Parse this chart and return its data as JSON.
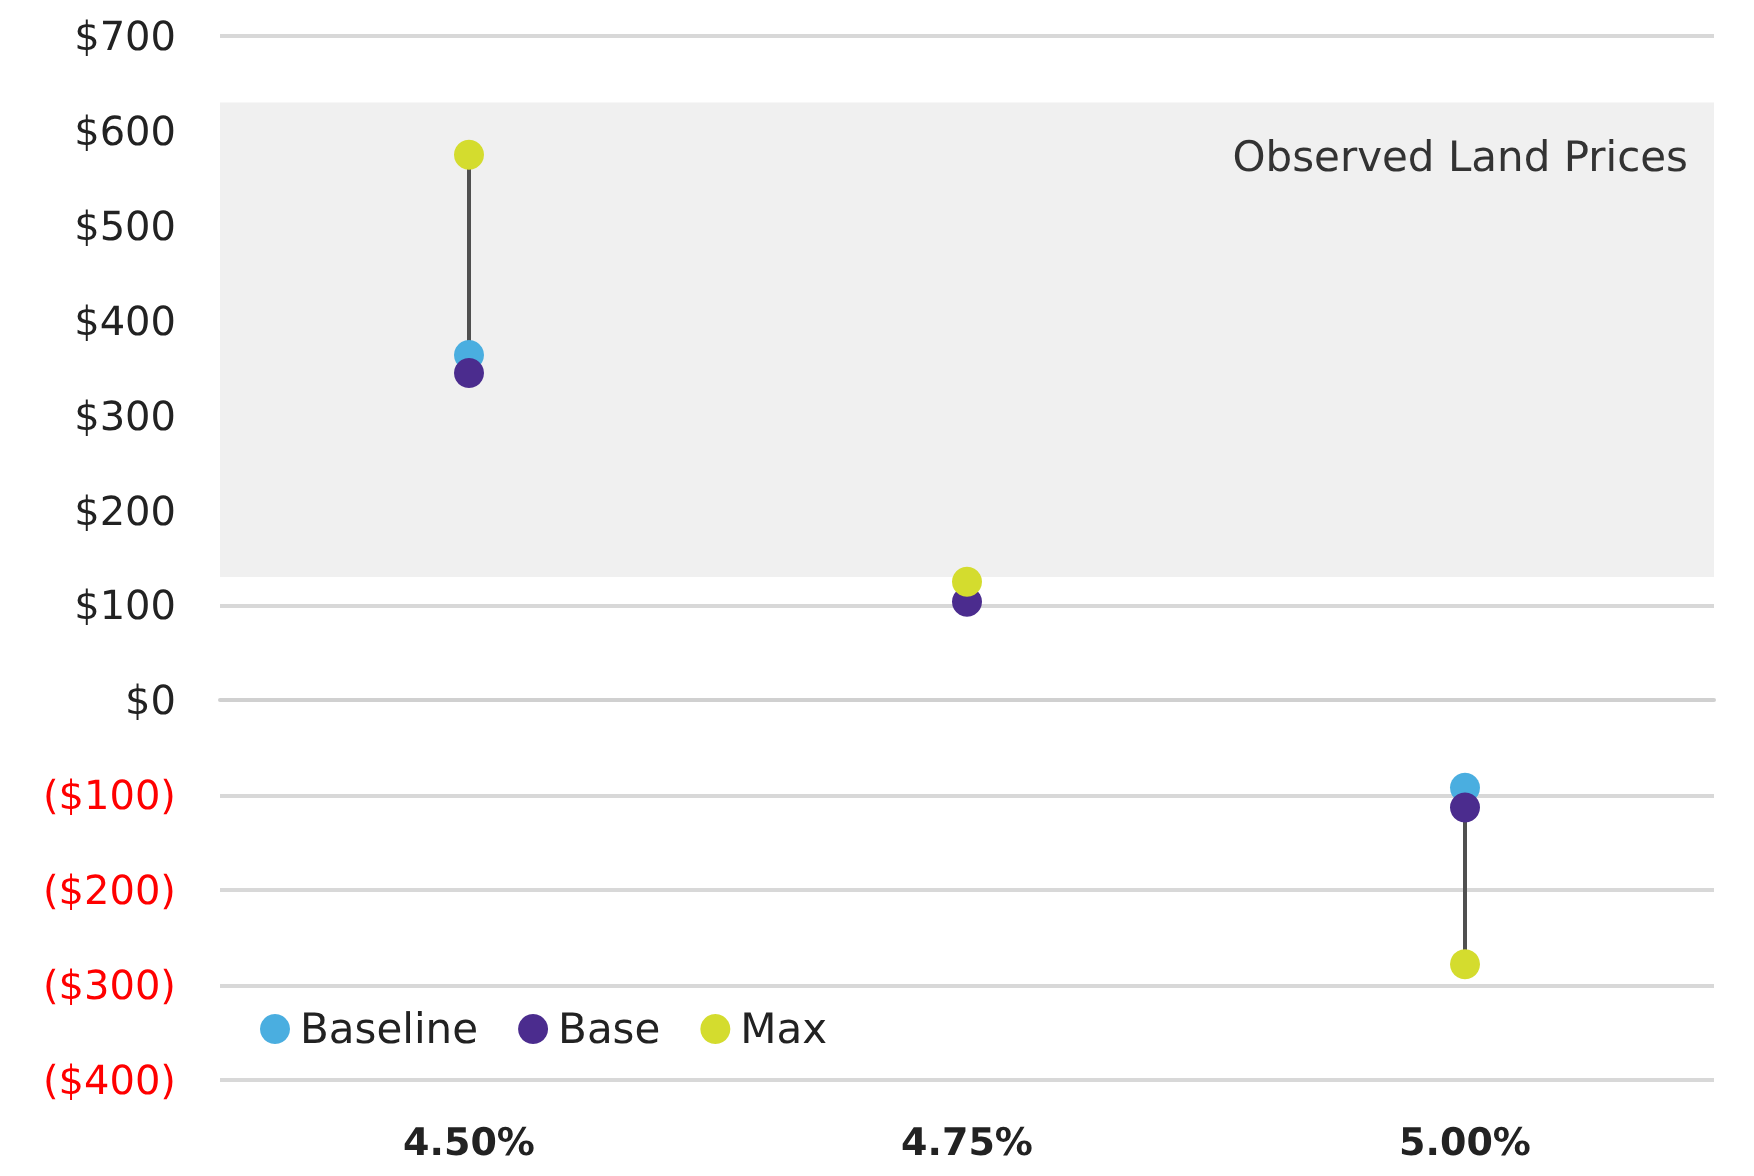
{
  "chart_data": {
    "type": "scatter",
    "categories": [
      "4.50%",
      "4.75%",
      "5.00%"
    ],
    "series": [
      {
        "name": "Baseline",
        "color": "#4aaee0",
        "values": [
          364,
          null,
          -92
        ]
      },
      {
        "name": "Base",
        "color": "#4b2c8e",
        "values": [
          345,
          104,
          -113
        ]
      },
      {
        "name": "Max",
        "color": "#d4dc2e",
        "values": [
          575,
          125,
          -278
        ]
      }
    ],
    "ylim": [
      -400,
      700
    ],
    "yticks": [
      {
        "value": -400,
        "label": "($400)"
      },
      {
        "value": -300,
        "label": "($300)"
      },
      {
        "value": -200,
        "label": "($200)"
      },
      {
        "value": -100,
        "label": "($100)"
      },
      {
        "value": 0,
        "label": "$0"
      },
      {
        "value": 100,
        "label": "$100"
      },
      {
        "value": 200,
        "label": "$200"
      },
      {
        "value": 300,
        "label": "$300"
      },
      {
        "value": 400,
        "label": "$400"
      },
      {
        "value": 500,
        "label": "$500"
      },
      {
        "value": 600,
        "label": "$600"
      },
      {
        "value": 700,
        "label": "$700"
      }
    ],
    "bands": [
      {
        "axis": "y",
        "from": 130,
        "to": 630,
        "label": "Observed Land Prices",
        "color": "#f0f0f0"
      }
    ],
    "grid": "y",
    "legend": "bottom left",
    "marker": "circle"
  }
}
